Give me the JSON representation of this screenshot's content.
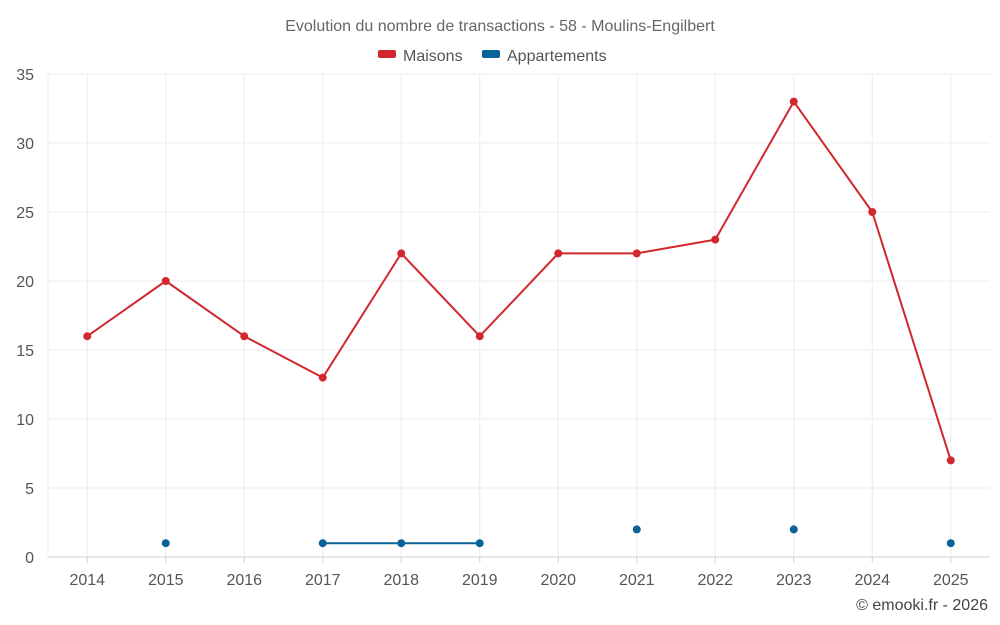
{
  "chart_data": {
    "type": "line",
    "title": "Evolution du nombre de transactions - 58 - Moulins-Engilbert",
    "xlabel": "",
    "ylabel": "",
    "ylim": [
      0,
      35
    ],
    "yticks": [
      0,
      5,
      10,
      15,
      20,
      25,
      30,
      35
    ],
    "categories": [
      "2014",
      "2015",
      "2016",
      "2017",
      "2018",
      "2019",
      "2020",
      "2021",
      "2022",
      "2023",
      "2024",
      "2025"
    ],
    "grid": true,
    "legend_position": "top-center",
    "series": [
      {
        "name": "Maisons",
        "color": "#d0282e",
        "values": [
          16,
          20,
          16,
          13,
          22,
          16,
          22,
          22,
          23,
          33,
          25,
          7
        ]
      },
      {
        "name": "Appartements",
        "color": "#0a6398",
        "values": [
          null,
          1,
          null,
          1,
          1,
          1,
          null,
          2,
          null,
          2,
          null,
          1
        ]
      }
    ],
    "credit": "© emooki.fr - 2026"
  }
}
